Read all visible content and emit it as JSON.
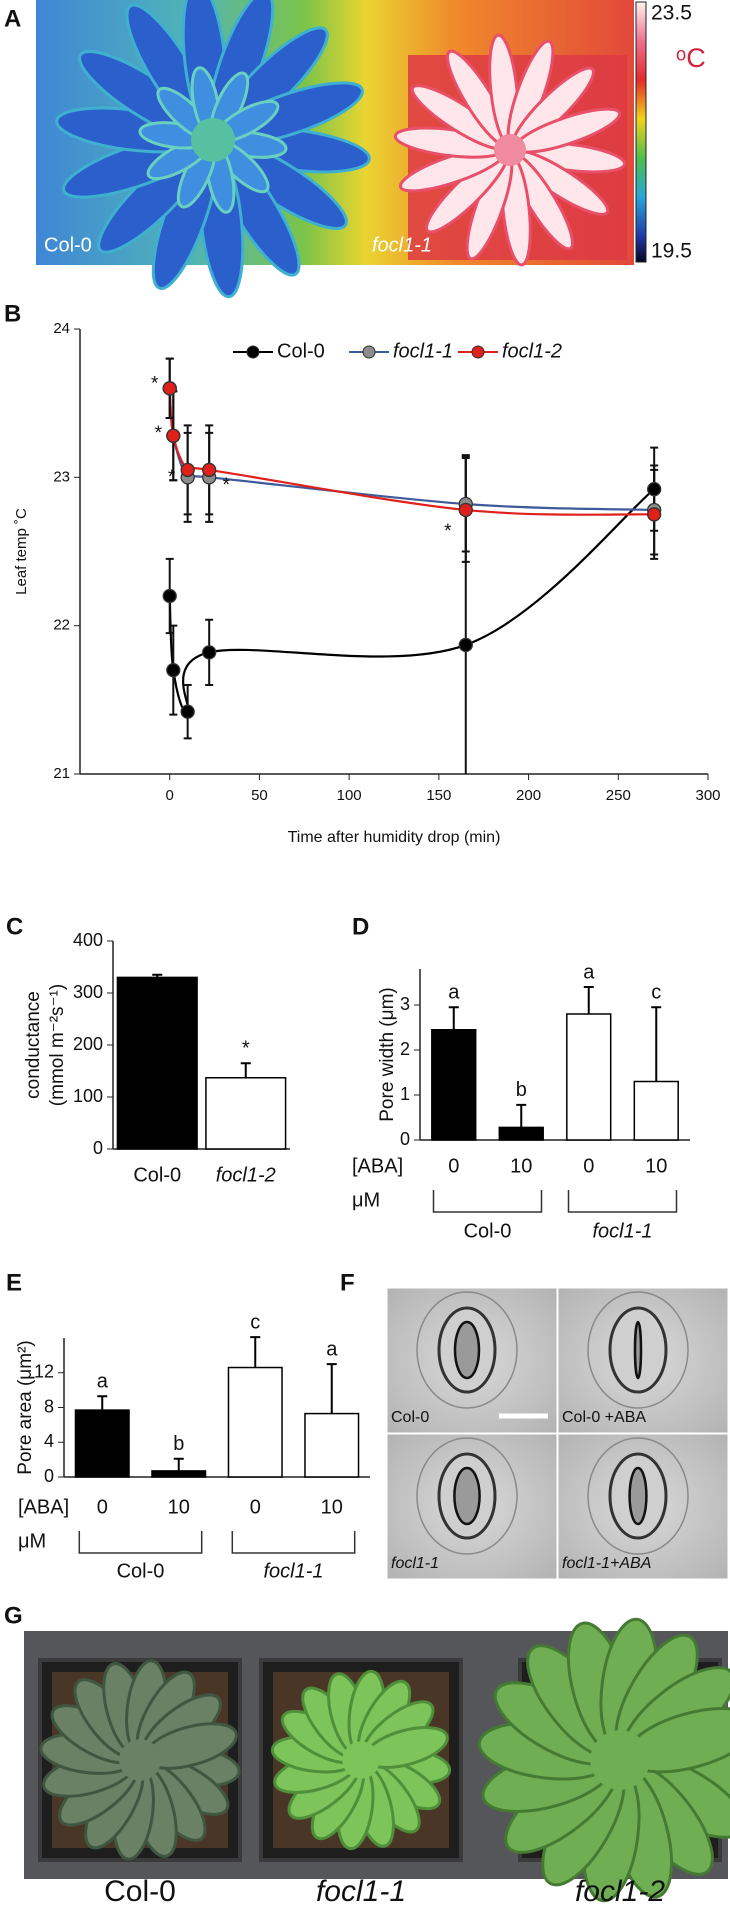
{
  "panel_a": {
    "label": "A",
    "left_label": "Col-0",
    "right_label": "focl1-1",
    "scale_max": 23.5,
    "scale_unit": "ᵒC",
    "scale_min": 19.5
  },
  "chart_data": [
    {
      "label": "B",
      "type": "line",
      "x": [
        0,
        2,
        10,
        22,
        165,
        270
      ],
      "xlim": [
        -50,
        300
      ],
      "xticks": [
        0,
        50,
        100,
        150,
        200,
        250,
        300
      ],
      "ylim": [
        21,
        24
      ],
      "yticks": [
        21,
        22,
        23,
        24
      ],
      "xlabel": "Time after humidity drop (min)",
      "ylabel": "Leaf temp ˚C",
      "series": [
        {
          "name": "Col-0",
          "color": "#000000",
          "marker_color": "#000000",
          "values": [
            22.2,
            21.7,
            21.42,
            21.82,
            21.87,
            22.92
          ],
          "errors": [
            0.25,
            0.3,
            0.18,
            0.22,
            1.28,
            0.28
          ]
        },
        {
          "name": "focl1-1",
          "color": "#3d5a99",
          "marker_color": "#8c8c8c",
          "values": [
            23.6,
            23.28,
            23.0,
            23.0,
            22.82,
            22.78
          ],
          "errors": [
            0.2,
            0.3,
            0.3,
            0.3,
            0.32,
            0.3
          ]
        },
        {
          "name": "focl1-2",
          "color": "#e0201b",
          "marker_color": "#e0201b",
          "values": [
            23.6,
            23.28,
            23.05,
            23.05,
            22.78,
            22.75
          ],
          "errors": [
            0.2,
            0.3,
            0.3,
            0.3,
            0.35,
            0.3
          ],
          "significance": [
            "*",
            "*",
            "*",
            "*",
            "*",
            null
          ]
        }
      ]
    },
    {
      "label": "C",
      "type": "bar",
      "categories": [
        "Col-0",
        "focl1-2"
      ],
      "values": [
        330,
        137
      ],
      "errors": [
        5,
        28
      ],
      "colors": [
        "#000000",
        "#ffffff"
      ],
      "significance": [
        null,
        "*"
      ],
      "ylim": [
        0,
        400
      ],
      "yticks": [
        0,
        100,
        200,
        300,
        400
      ],
      "ylabel": [
        "conductance",
        "(mmol m⁻²s⁻¹)"
      ]
    },
    {
      "label": "D",
      "type": "bar",
      "categories": [
        "0",
        "10",
        "0",
        "10"
      ],
      "values": [
        2.45,
        0.28,
        2.8,
        1.3
      ],
      "errors": [
        0.5,
        0.5,
        0.6,
        1.65
      ],
      "colors": [
        "#000000",
        "#000000",
        "#ffffff",
        "#ffffff"
      ],
      "significance": [
        "a",
        "b",
        "a",
        "c"
      ],
      "ylim": [
        0,
        3.8
      ],
      "yticks": [
        0,
        1,
        2,
        3
      ],
      "ylabel": [
        "Pore width (μm)"
      ],
      "x_label": "[ABA]",
      "x_unit": "μM",
      "groups": [
        "Col-0",
        "focl1-1"
      ]
    },
    {
      "label": "E",
      "type": "bar",
      "categories": [
        "0",
        "10",
        "0",
        "10"
      ],
      "values": [
        7.7,
        0.7,
        12.6,
        7.3
      ],
      "errors": [
        1.6,
        1.4,
        3.5,
        5.7
      ],
      "colors": [
        "#000000",
        "#000000",
        "#ffffff",
        "#ffffff"
      ],
      "significance": [
        "a",
        "b",
        "c",
        "a"
      ],
      "ylim": [
        0,
        16
      ],
      "yticks": [
        0,
        4,
        8,
        12
      ],
      "ylabel": [
        "Pore area (μm²)"
      ],
      "x_label": "[ABA]",
      "x_unit": "μM",
      "groups": [
        "Col-0",
        "focl1-1"
      ]
    }
  ],
  "panel_f": {
    "label": "F",
    "images": [
      "Col-0",
      "Col-0 +ABA",
      "focl1-1",
      "focl1-1+ABA"
    ]
  },
  "panel_g": {
    "label": "G",
    "images": [
      "Col-0",
      "focl1-1",
      "focl1-2"
    ]
  }
}
